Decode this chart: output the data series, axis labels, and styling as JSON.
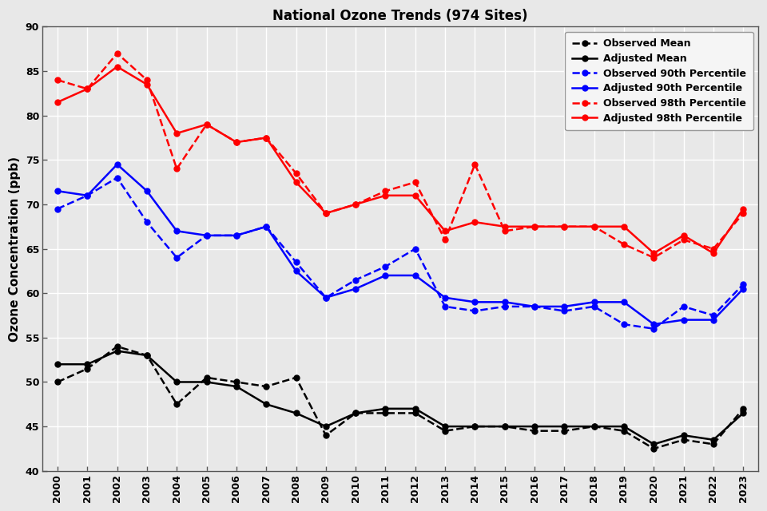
{
  "title": "National Ozone Trends (974 Sites)",
  "ylabel": "Ozone Concentration (ppb)",
  "years": [
    2000,
    2001,
    2002,
    2003,
    2004,
    2005,
    2006,
    2007,
    2008,
    2009,
    2010,
    2011,
    2012,
    2013,
    2014,
    2015,
    2016,
    2017,
    2018,
    2019,
    2020,
    2021,
    2022,
    2023
  ],
  "observed_mean": [
    50.0,
    51.5,
    54.0,
    53.0,
    47.5,
    50.5,
    50.0,
    49.5,
    50.5,
    44.0,
    46.5,
    46.5,
    46.5,
    44.5,
    45.0,
    45.0,
    44.5,
    44.5,
    45.0,
    44.5,
    42.5,
    43.5,
    43.0,
    47.0
  ],
  "adjusted_mean": [
    52.0,
    52.0,
    53.5,
    53.0,
    50.0,
    50.0,
    49.5,
    47.5,
    46.5,
    45.0,
    46.5,
    47.0,
    47.0,
    45.0,
    45.0,
    45.0,
    45.0,
    45.0,
    45.0,
    45.0,
    43.0,
    44.0,
    43.5,
    46.5
  ],
  "observed_90th": [
    69.5,
    71.0,
    73.0,
    68.0,
    64.0,
    66.5,
    66.5,
    67.5,
    63.5,
    59.5,
    61.5,
    63.0,
    65.0,
    58.5,
    58.0,
    58.5,
    58.5,
    58.0,
    58.5,
    56.5,
    56.0,
    58.5,
    57.5,
    61.0
  ],
  "adjusted_90th": [
    71.5,
    71.0,
    74.5,
    71.5,
    67.0,
    66.5,
    66.5,
    67.5,
    62.5,
    59.5,
    60.5,
    62.0,
    62.0,
    59.5,
    59.0,
    59.0,
    58.5,
    58.5,
    59.0,
    59.0,
    56.5,
    57.0,
    57.0,
    60.5
  ],
  "observed_98th": [
    84.0,
    83.0,
    87.0,
    84.0,
    74.0,
    79.0,
    77.0,
    77.5,
    73.5,
    69.0,
    70.0,
    71.5,
    72.5,
    66.0,
    74.5,
    67.0,
    67.5,
    67.5,
    67.5,
    65.5,
    64.0,
    66.0,
    65.0,
    69.0
  ],
  "adjusted_98th": [
    81.5,
    83.0,
    85.5,
    83.5,
    78.0,
    79.0,
    77.0,
    77.5,
    72.5,
    69.0,
    70.0,
    71.0,
    71.0,
    67.0,
    68.0,
    67.5,
    67.5,
    67.5,
    67.5,
    67.5,
    64.5,
    66.5,
    64.5,
    69.5
  ],
  "ylim": [
    40,
    90
  ],
  "yticks": [
    40,
    45,
    50,
    55,
    60,
    65,
    70,
    75,
    80,
    85,
    90
  ],
  "bg_color": "#e8e8e8",
  "plot_bg_color": "#e8e8e8",
  "grid_color": "#ffffff",
  "obs_mean_color": "#000000",
  "adj_mean_color": "#000000",
  "obs_90_color": "#0000ff",
  "adj_90_color": "#0000ff",
  "obs_98_color": "#ff0000",
  "adj_98_color": "#ff0000",
  "legend_facecolor": "#f5f5f5",
  "legend_edgecolor": "#999999",
  "title_fontsize": 12,
  "axis_label_fontsize": 11,
  "tick_fontsize": 9,
  "legend_fontsize": 9,
  "linewidth": 1.8,
  "markersize": 5
}
